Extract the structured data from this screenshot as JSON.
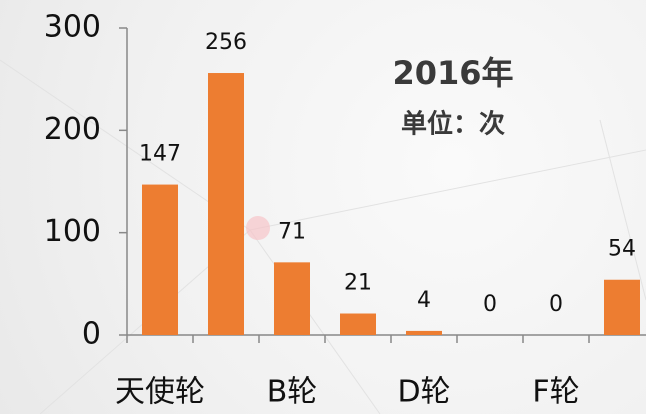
{
  "chart_data": {
    "type": "bar",
    "annotations": [
      "2016年",
      "单位：次"
    ],
    "categories": [
      "天使轮",
      null,
      "B轮",
      null,
      "D轮",
      null,
      "F轮",
      null
    ],
    "values": [
      147,
      256,
      71,
      21,
      4,
      0,
      0,
      54
    ],
    "color": "#ed7d31",
    "ylim": [
      0,
      300
    ],
    "yticks": [
      0,
      100,
      200,
      300
    ],
    "grid": false
  }
}
